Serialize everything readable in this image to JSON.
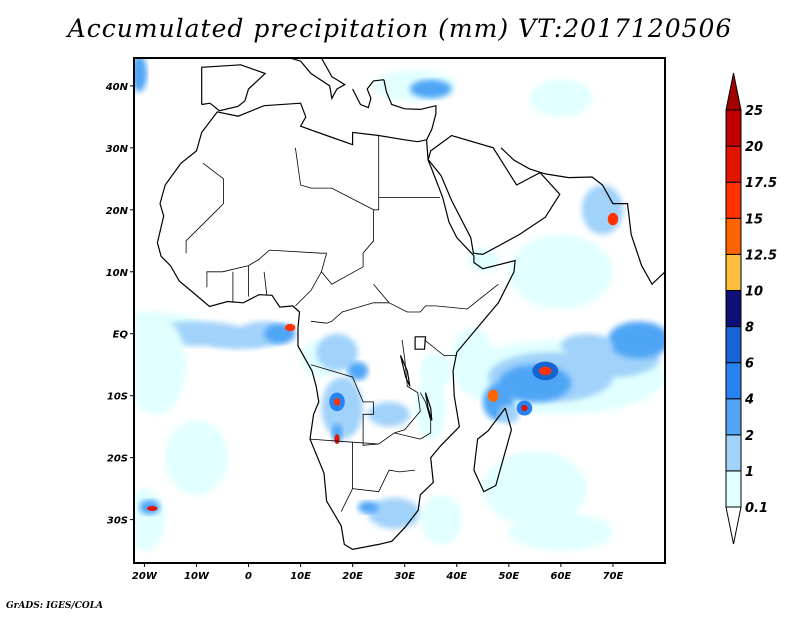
{
  "title": "Accumulated precipitation (mm) VT:2017120506",
  "credit": "GrADS: IGES/COLA",
  "map": {
    "lon_range": [
      -22,
      80
    ],
    "lat_range": [
      -37,
      44.5
    ],
    "x_ticks": [
      {
        "lon": -20,
        "label": "20W"
      },
      {
        "lon": -10,
        "label": "10W"
      },
      {
        "lon": 0,
        "label": "0"
      },
      {
        "lon": 10,
        "label": "10E"
      },
      {
        "lon": 20,
        "label": "20E"
      },
      {
        "lon": 30,
        "label": "30E"
      },
      {
        "lon": 40,
        "label": "40E"
      },
      {
        "lon": 50,
        "label": "50E"
      },
      {
        "lon": 60,
        "label": "60E"
      },
      {
        "lon": 70,
        "label": "70E"
      }
    ],
    "y_ticks": [
      {
        "lat": 40,
        "label": "40N"
      },
      {
        "lat": 30,
        "label": "30N"
      },
      {
        "lat": 20,
        "label": "20N"
      },
      {
        "lat": 10,
        "label": "10N"
      },
      {
        "lat": 0,
        "label": "EQ"
      },
      {
        "lat": -10,
        "label": "10S"
      },
      {
        "lat": -20,
        "label": "20S"
      },
      {
        "lat": -30,
        "label": "30S"
      }
    ]
  },
  "colorbar": {
    "levels": [
      "0.1",
      "1",
      "2",
      "4",
      "6",
      "8",
      "10",
      "12.5",
      "15",
      "17.5",
      "20",
      "25"
    ],
    "colors": [
      "#ffffff",
      "#e1ffff",
      "#a0d2fa",
      "#50a5f5",
      "#2882f0",
      "#1464d2",
      "#0f0f78",
      "#ffbe3c",
      "#ff6400",
      "#ff3200",
      "#e11400",
      "#c00000",
      "#a50000"
    ]
  }
}
